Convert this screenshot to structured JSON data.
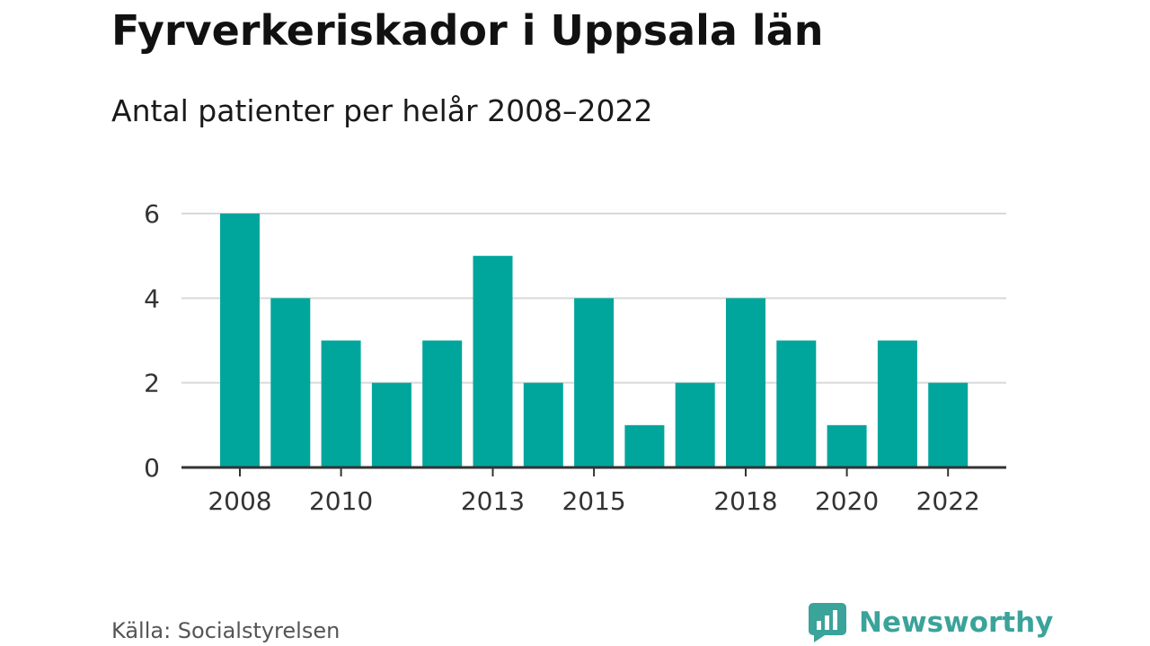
{
  "header": {
    "title": "Fyrverkeriskador i Uppsala län",
    "subtitle": "Antal patienter per helår 2008–2022"
  },
  "footer": {
    "source": "Källa: Socialstyrelsen",
    "brand": "Newsworthy",
    "brand_icon": "bar-chart-logo-icon"
  },
  "colors": {
    "bar": "#00a69c",
    "grid": "#d9d9d9",
    "axis": "#333333",
    "brand": "#3aa39a"
  },
  "chart_data": {
    "type": "bar",
    "title": "Fyrverkeriskador i Uppsala län",
    "subtitle": "Antal patienter per helår 2008–2022",
    "xlabel": "",
    "ylabel": "",
    "categories": [
      "2008",
      "2009",
      "2010",
      "2011",
      "2012",
      "2013",
      "2014",
      "2015",
      "2016",
      "2017",
      "2018",
      "2019",
      "2020",
      "2021",
      "2022"
    ],
    "values": [
      6,
      4,
      3,
      2,
      3,
      5,
      2,
      4,
      1,
      2,
      4,
      3,
      1,
      3,
      2
    ],
    "ylim": [
      0,
      6
    ],
    "yticks": [
      "0",
      "2",
      "4",
      "6"
    ],
    "xtick_labels": [
      "2008",
      "2010",
      "2013",
      "2015",
      "2018",
      "2020",
      "2022"
    ],
    "grid": true,
    "legend": "none"
  }
}
